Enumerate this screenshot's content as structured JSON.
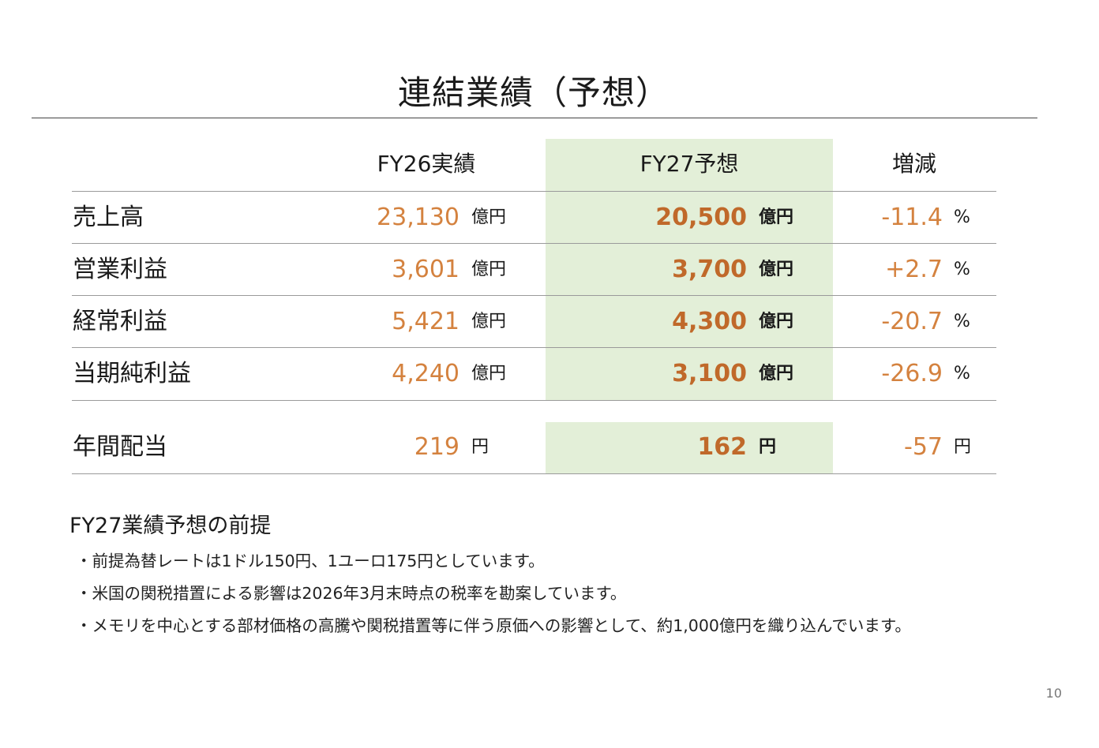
{
  "slide": {
    "title": "連結業績（予想）",
    "page_number": "10"
  },
  "table": {
    "headers": {
      "fy26": "FY26実績",
      "fy27": "FY27予想",
      "change": "増減"
    },
    "rows": [
      {
        "label": "売上高",
        "fy26_value": "23,130",
        "fy26_unit": "億円",
        "fy27_value": "20,500",
        "fy27_unit": "億円",
        "change_value": "-11.4",
        "change_unit": "%"
      },
      {
        "label": "営業利益",
        "fy26_value": "3,601",
        "fy26_unit": "億円",
        "fy27_value": "3,700",
        "fy27_unit": "億円",
        "change_value": "+2.7",
        "change_unit": "%"
      },
      {
        "label": "経常利益",
        "fy26_value": "5,421",
        "fy26_unit": "億円",
        "fy27_value": "4,300",
        "fy27_unit": "億円",
        "change_value": "-20.7",
        "change_unit": "%"
      },
      {
        "label": "当期純利益",
        "fy26_value": "4,240",
        "fy26_unit": "億円",
        "fy27_value": "3,100",
        "fy27_unit": "億円",
        "change_value": "-26.9",
        "change_unit": "%"
      }
    ],
    "dividend": {
      "label": "年間配当",
      "fy26_value": "219",
      "fy26_unit": "円",
      "fy27_value": "162",
      "fy27_unit": "円",
      "change_value": "-57",
      "change_unit": "円"
    }
  },
  "assumptions": {
    "title": "FY27業績予想の前提",
    "items": [
      "・前提為替レートは1ドル150円、1ユーロ175円としています。",
      "・米国の関税措置による影響は2026年3月末時点の税率を勘案しています。",
      "・メモリを中心とする部材価格の高騰や関税措置等に伴う原価への影響として、約1,000億円を織り込んでいます。"
    ]
  },
  "colors": {
    "accent_orange": "#d4823f",
    "accent_orange_bold": "#c0692a",
    "highlight_green": "#e3efd8"
  }
}
